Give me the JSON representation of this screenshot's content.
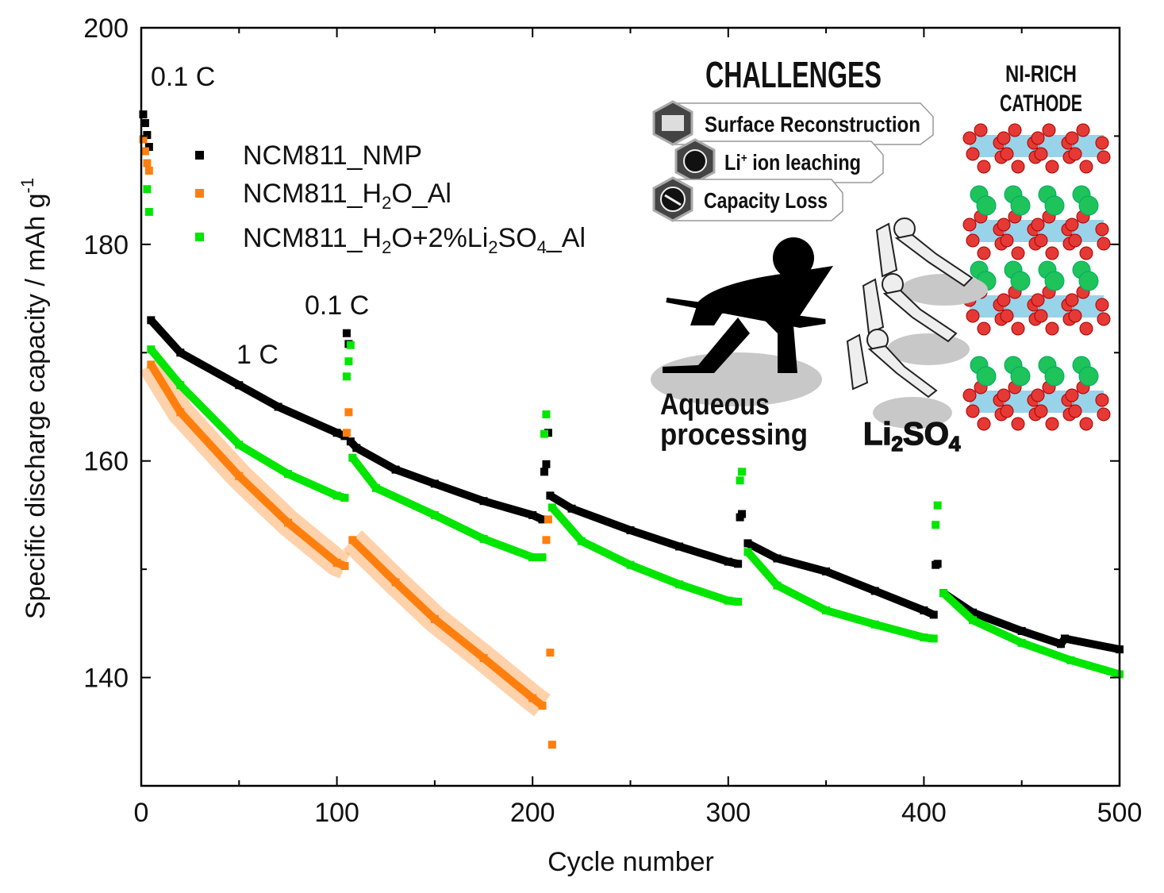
{
  "chart_data": {
    "type": "scatter",
    "xlabel": "Cycle number",
    "ylabel": "Specific discharge capacity / mAh g",
    "ylabel_sup": "-1",
    "xlim": [
      0,
      500
    ],
    "ylim": [
      130,
      200
    ],
    "xticks": [
      0,
      100,
      200,
      300,
      400,
      500
    ],
    "yticks": [
      140,
      160,
      180,
      200
    ],
    "grid": false,
    "legend_position": "top-left",
    "annotations": [
      {
        "text": "0.1 C",
        "x": 5,
        "y": 195.5
      },
      {
        "text": "1 C",
        "x": 48,
        "y": 167.2
      },
      {
        "text": "0.1 C",
        "x": 83,
        "y": 171.6
      }
    ],
    "series": [
      {
        "name": "NCM811_NMP",
        "color": "#000000",
        "segments": [
          {
            "rate": "0.1C",
            "points": [
              [
                1,
                192.0
              ],
              [
                2,
                191.2
              ],
              [
                3,
                190.1
              ],
              [
                4,
                189.0
              ]
            ]
          },
          {
            "rate": "1C",
            "points": [
              [
                5,
                173.0
              ],
              [
                20,
                170.0
              ],
              [
                50,
                167.0
              ],
              [
                70,
                165.0
              ],
              [
                100,
                162.6
              ],
              [
                104,
                162.3
              ]
            ]
          },
          {
            "rate": "0.1C",
            "points": [
              [
                105,
                171.8
              ],
              [
                106,
                170.8
              ]
            ]
          },
          {
            "rate": "1C",
            "points": [
              [
                107,
                161.8
              ],
              [
                110,
                161.2
              ],
              [
                130,
                159.2
              ],
              [
                150,
                157.9
              ],
              [
                175,
                156.3
              ],
              [
                200,
                155.0
              ],
              [
                205,
                154.6
              ]
            ]
          },
          {
            "rate": "0.1C",
            "points": [
              [
                206,
                159.0
              ],
              [
                207,
                159.7
              ],
              [
                208,
                162.6
              ]
            ]
          },
          {
            "rate": "1C",
            "points": [
              [
                209,
                156.8
              ],
              [
                220,
                155.6
              ],
              [
                250,
                153.6
              ],
              [
                275,
                152.1
              ],
              [
                300,
                150.7
              ],
              [
                305,
                150.5
              ]
            ]
          },
          {
            "rate": "0.1C",
            "points": [
              [
                306,
                154.8
              ],
              [
                307,
                155.1
              ]
            ]
          },
          {
            "rate": "1C",
            "points": [
              [
                310,
                152.4
              ],
              [
                325,
                151.0
              ],
              [
                350,
                149.8
              ],
              [
                375,
                148.0
              ],
              [
                400,
                146.2
              ],
              [
                405,
                145.8
              ]
            ]
          },
          {
            "rate": "0.1C",
            "points": [
              [
                406,
                150.4
              ],
              [
                407,
                150.5
              ]
            ]
          },
          {
            "rate": "1C",
            "points": [
              [
                410,
                147.8
              ],
              [
                425,
                146.0
              ],
              [
                450,
                144.3
              ],
              [
                470,
                143.1
              ],
              [
                472,
                143.6
              ],
              [
                500,
                142.6
              ]
            ]
          }
        ]
      },
      {
        "name": "NCM811_H2O_Al",
        "color": "#ff7f0e",
        "segments": [
          {
            "rate": "0.1C",
            "points": [
              [
                1,
                189.7
              ],
              [
                2,
                188.6
              ],
              [
                3,
                187.5
              ],
              [
                4,
                186.8
              ]
            ]
          },
          {
            "rate": "1C",
            "points": [
              [
                5,
                168.9
              ],
              [
                20,
                164.5
              ],
              [
                50,
                158.6
              ],
              [
                75,
                154.3
              ],
              [
                100,
                150.6
              ],
              [
                104,
                150.3
              ]
            ]
          },
          {
            "rate": "0.1C",
            "points": [
              [
                105,
                162.6
              ],
              [
                106,
                164.5
              ]
            ]
          },
          {
            "rate": "1C",
            "points": [
              [
                108,
                152.7
              ],
              [
                130,
                148.8
              ],
              [
                150,
                145.4
              ],
              [
                175,
                141.8
              ],
              [
                200,
                138.1
              ],
              [
                205,
                137.4
              ]
            ]
          },
          {
            "rate": "0.1C",
            "points": [
              [
                207,
                152.7
              ],
              [
                208,
                154.6
              ],
              [
                209,
                142.3
              ],
              [
                210,
                133.8
              ]
            ]
          }
        ]
      },
      {
        "name": "NCM811_H2O+2%Li2SO4_Al",
        "color": "#00e600",
        "segments": [
          {
            "rate": "0.1C",
            "points": [
              [
                3,
                185.1
              ],
              [
                4,
                183.0
              ]
            ]
          },
          {
            "rate": "1C",
            "points": [
              [
                5,
                170.3
              ],
              [
                20,
                167.0
              ],
              [
                50,
                161.5
              ],
              [
                75,
                158.8
              ],
              [
                100,
                156.8
              ],
              [
                104,
                156.6
              ]
            ]
          },
          {
            "rate": "0.1C",
            "points": [
              [
                105,
                167.8
              ],
              [
                106,
                169.2
              ],
              [
                107,
                170.7
              ]
            ]
          },
          {
            "rate": "1C",
            "points": [
              [
                108,
                160.3
              ],
              [
                120,
                157.5
              ],
              [
                150,
                155.0
              ],
              [
                175,
                152.8
              ],
              [
                200,
                151.1
              ],
              [
                205,
                151.1
              ]
            ]
          },
          {
            "rate": "0.1C",
            "points": [
              [
                206,
                162.5
              ],
              [
                207,
                164.3
              ]
            ]
          },
          {
            "rate": "1C",
            "points": [
              [
                210,
                155.7
              ],
              [
                225,
                152.6
              ],
              [
                250,
                150.4
              ],
              [
                275,
                148.6
              ],
              [
                300,
                147.1
              ],
              [
                305,
                147.0
              ]
            ]
          },
          {
            "rate": "0.1C",
            "points": [
              [
                306,
                158.2
              ],
              [
                307,
                159.0
              ]
            ]
          },
          {
            "rate": "1C",
            "points": [
              [
                310,
                151.6
              ],
              [
                325,
                148.5
              ],
              [
                350,
                146.2
              ],
              [
                375,
                144.9
              ],
              [
                400,
                143.7
              ],
              [
                405,
                143.6
              ]
            ]
          },
          {
            "rate": "0.1C",
            "points": [
              [
                406,
                154.1
              ],
              [
                407,
                155.9
              ]
            ]
          },
          {
            "rate": "1C",
            "points": [
              [
                410,
                147.8
              ],
              [
                425,
                145.3
              ],
              [
                450,
                143.2
              ],
              [
                475,
                141.6
              ],
              [
                500,
                140.3
              ]
            ]
          }
        ]
      }
    ],
    "legend": [
      {
        "label_main": "NCM811_H",
        "html": "NCM811_NMP"
      },
      {
        "html": "NCM811_H2O_Al"
      },
      {
        "html": "NCM811_H2O+2%Li2SO4_Al"
      }
    ]
  },
  "inset": {
    "title": "CHALLENGES",
    "items": [
      "Surface Reconstruction",
      "ion leaching",
      "Capacity Loss"
    ],
    "li_prefix": "Li",
    "li_sup": "+",
    "cathode_line1": "NI-RICH",
    "cathode_line2": "CATHODE",
    "aqueous_line1": "Aqueous",
    "aqueous_line2": "processing",
    "additive": {
      "li": "Li",
      "sub1": "2",
      "so": "SO",
      "sub2": "4"
    },
    "colors": {
      "oxygen": "#e53935",
      "lithium": "#1ec35a",
      "metal": "#7ec8e3",
      "shadow": "#c8c8c8"
    }
  }
}
